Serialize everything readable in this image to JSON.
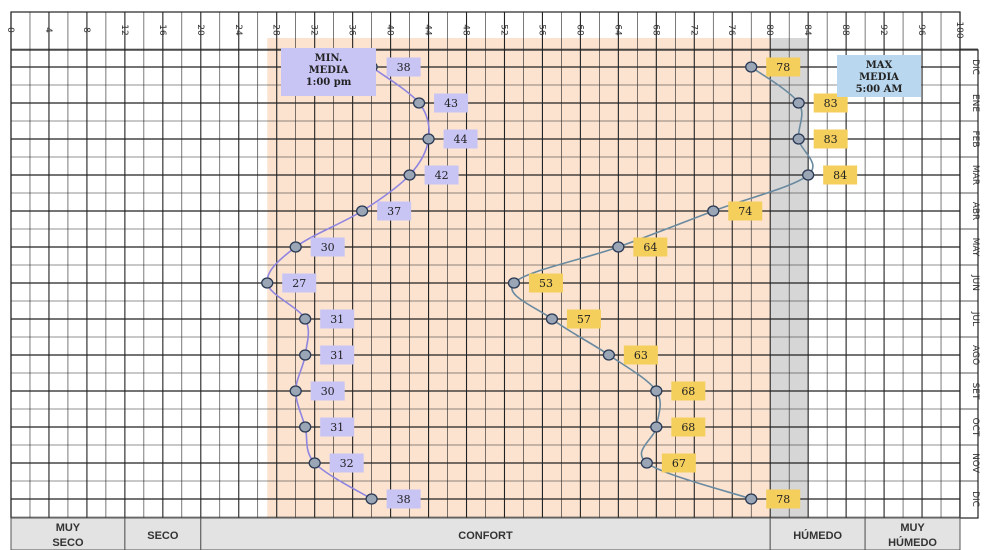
{
  "chart_data": {
    "type": "line",
    "x_axis": {
      "range": [
        0,
        100
      ],
      "ticks": [
        "0",
        "4",
        "8",
        "12",
        "16",
        "20",
        "24",
        "28",
        "32",
        "36",
        "40",
        "44",
        "48",
        "52",
        "56",
        "60",
        "64",
        "68",
        "72",
        "76",
        "80",
        "84",
        "88",
        "92",
        "96",
        "100"
      ]
    },
    "months": [
      "DIC",
      "ENE",
      "FEB",
      "MAR",
      "ABR",
      "MAY",
      "JUN",
      "JUL",
      "AGO",
      "SET",
      "OCT",
      "NOV",
      "DIC"
    ],
    "zones": [
      {
        "label": "MUY SECO",
        "lines": [
          "MUY",
          "SECO"
        ],
        "from": 0,
        "to": 12
      },
      {
        "label": "SECO",
        "lines": [
          "SECO"
        ],
        "from": 12,
        "to": 20
      },
      {
        "label": "CONFORT",
        "lines": [
          "CONFORT"
        ],
        "from": 20,
        "to": 80
      },
      {
        "label": "HÚMEDO",
        "lines": [
          "HÚMEDO"
        ],
        "from": 80,
        "to": 90
      },
      {
        "label": "MUY HÚMEDO",
        "lines": [
          "MUY",
          "HÚMEDO"
        ],
        "from": 90,
        "to": 100
      }
    ],
    "comfort_band": [
      27,
      80
    ],
    "humid_band": [
      80,
      84
    ],
    "series": [
      {
        "key": "min",
        "values": [
          38,
          43,
          44,
          42,
          37,
          30,
          27,
          31,
          31,
          30,
          31,
          32,
          38
        ],
        "line_color": "#8f85e0",
        "label_color": "#c8c5f5",
        "annotation": [
          "MIN.",
          "MEDIA",
          "1:00 pm"
        ],
        "annotation_color": "#c8c5f5"
      },
      {
        "key": "max",
        "values": [
          78,
          83,
          83,
          84,
          74,
          64,
          53,
          57,
          63,
          68,
          68,
          67,
          78
        ],
        "line_color": "#6a8aa0",
        "label_color": "#f5cf5c",
        "annotation": [
          "MAX",
          "MEDIA",
          "5:00 AM"
        ],
        "annotation_color": "#b9d7ee"
      }
    ],
    "colors": {
      "comfort_fill": "#fbe3d0",
      "humid_fill": "#d6d6d6",
      "marker_fill": "#9aa6b6",
      "zone_bar_fill": "#e3e3e3",
      "grid": "#222222"
    }
  }
}
